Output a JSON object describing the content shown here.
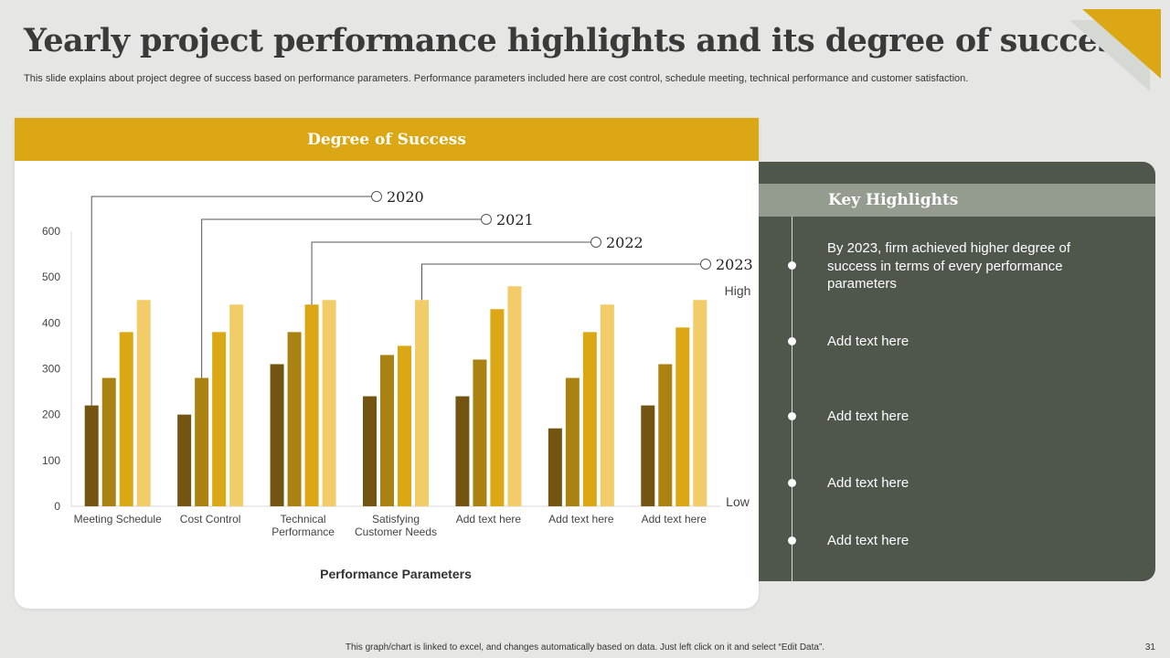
{
  "slide": {
    "title": "Yearly project performance highlights and its degree of success",
    "subtitle": "This slide explains about project degree of success based on performance parameters. Performance parameters included here are cost control, schedule meeting, technical performance and customer satisfaction.",
    "footer": "This graph/chart is linked to excel, and changes automatically based on data. Just left click on it and select “Edit Data”.",
    "page_number": "31"
  },
  "colors": {
    "accent": "#dba714",
    "panel": "#4f564c",
    "panel_header": "#949c90",
    "background": "#e6e7e5"
  },
  "chart_panel": {
    "header": "Degree of Success"
  },
  "chart_data": {
    "type": "bar",
    "title": "Degree of Success",
    "xlabel": "Performance Parameters",
    "ylabel": "",
    "ylim": [
      0,
      600
    ],
    "yticks": [
      0,
      100,
      200,
      300,
      400,
      500,
      600
    ],
    "grid": false,
    "categories": [
      [
        "Meeting Schedule"
      ],
      [
        "Cost Control"
      ],
      [
        "Technical",
        "Performance"
      ],
      [
        "Satisfying",
        "Customer Needs"
      ],
      [
        "Add text here"
      ],
      [
        "Add text here"
      ],
      [
        "Add text here"
      ]
    ],
    "series": [
      {
        "name": "2020",
        "color": "#735511",
        "values": [
          220,
          200,
          310,
          240,
          240,
          170,
          220
        ]
      },
      {
        "name": "2021",
        "color": "#a98211",
        "values": [
          280,
          280,
          380,
          330,
          320,
          280,
          310
        ]
      },
      {
        "name": "2022",
        "color": "#dba714",
        "values": [
          380,
          380,
          440,
          350,
          430,
          380,
          390
        ]
      },
      {
        "name": "2023",
        "color": "#f3cc6a",
        "values": [
          450,
          440,
          450,
          450,
          480,
          440,
          450
        ]
      }
    ],
    "legend_callout_category": [
      0,
      1,
      2,
      3
    ],
    "scale_labels": {
      "high": "High",
      "low": "Low"
    }
  },
  "key_highlights": {
    "title": "Key Highlights",
    "items": [
      "By 2023, firm achieved higher degree of success in terms of every performance parameters",
      "Add text here",
      "Add text here",
      "Add text here",
      "Add text here"
    ]
  }
}
